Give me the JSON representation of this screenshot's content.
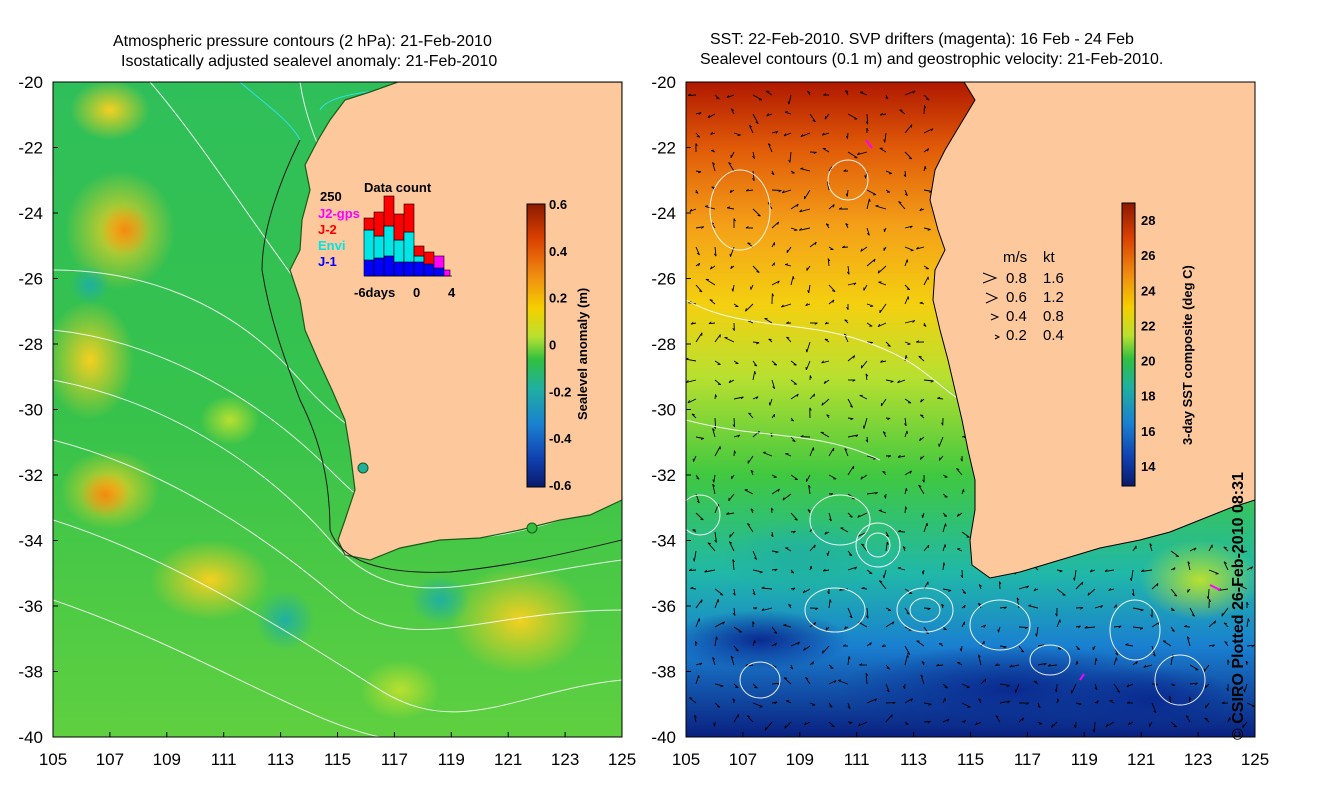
{
  "left_panel": {
    "title_line1": "Atmospheric pressure contours (2 hPa): 21-Feb-2010",
    "title_line2": "Isostatically adjusted sealevel anomaly: 21-Feb-2010",
    "y_ticks": [
      "-20",
      "-22",
      "-24",
      "-26",
      "-28",
      "-30",
      "-32",
      "-34",
      "-36",
      "-38",
      "-40"
    ],
    "x_ticks": [
      "105",
      "107",
      "109",
      "111",
      "113",
      "115",
      "117",
      "119",
      "121",
      "123",
      "125"
    ],
    "colorbar": {
      "label": "Sealevel anomaly (m)",
      "ticks": [
        "0.6",
        "0.4",
        "0.2",
        "0",
        "-0.2",
        "-0.4",
        "-0.6"
      ],
      "colors": [
        "#8b1a00",
        "#d94000",
        "#f08a10",
        "#f5d000",
        "#b8e030",
        "#30c040",
        "#20b0a0",
        "#1a80d0",
        "#1040b0",
        "#0a1a6a"
      ]
    },
    "inset": {
      "title": "Data count",
      "y_max_label": "250",
      "legend": [
        {
          "label": "J2-gps",
          "color": "#ff00ff"
        },
        {
          "label": "J-2",
          "color": "#ff0000"
        },
        {
          "label": "Envi",
          "color": "#00e5e5"
        },
        {
          "label": "J-1",
          "color": "#0000ff"
        }
      ],
      "x_labels": [
        "-6days",
        "0",
        "4"
      ]
    }
  },
  "right_panel": {
    "title_line1": "SST: 22-Feb-2010. SVP drifters (magenta): 16 Feb - 24 Feb",
    "title_line2": "Sealevel contours (0.1 m) and geostrophic velocity: 21-Feb-2010.",
    "y_ticks": [
      "-20",
      "-22",
      "-24",
      "-26",
      "-28",
      "-30",
      "-32",
      "-34",
      "-36",
      "-38",
      "-40"
    ],
    "x_ticks": [
      "105",
      "107",
      "109",
      "111",
      "113",
      "115",
      "117",
      "119",
      "121",
      "123",
      "125"
    ],
    "velocity_legend": {
      "header_ms": "m/s",
      "header_kt": "kt",
      "rows": [
        {
          "ms": "0.8",
          "kt": "1.6"
        },
        {
          "ms": "0.6",
          "kt": "1.2"
        },
        {
          "ms": "0.4",
          "kt": "0.8"
        },
        {
          "ms": "0.2",
          "kt": "0.4"
        }
      ]
    },
    "colorbar": {
      "label": "3-day SST composite (deg C)",
      "ticks": [
        "28",
        "26",
        "24",
        "22",
        "20",
        "18",
        "16",
        "14"
      ],
      "colors": [
        "#8b1a00",
        "#d94000",
        "#f08a10",
        "#f5d000",
        "#b8e030",
        "#30c040",
        "#20b0a0",
        "#1a80d0",
        "#1040b0",
        "#0a1a6a"
      ]
    }
  },
  "credit": "© CSIRO Plotted 26-Feb-2010 08:31"
}
